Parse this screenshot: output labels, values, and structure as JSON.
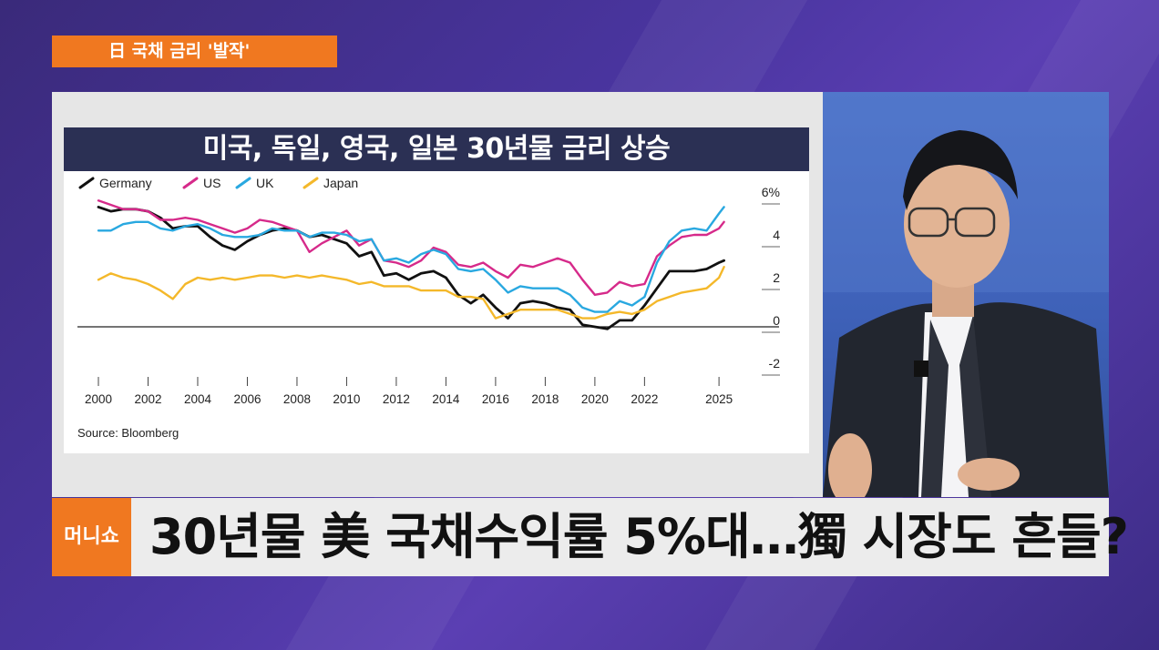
{
  "topic_tag": "日 국채 금리 '발작'",
  "chart_title": "미국, 독일, 영국, 일본 30년물 금리 상승",
  "logo_text": "머니쇼",
  "headline": "30년물 美 국채수익률 5%대…獨 시장도 흔들?",
  "chart_data": {
    "type": "line",
    "title": "미국, 독일, 영국, 일본 30년물 금리 상승",
    "source": "Source: Bloomberg",
    "x_ticks": [
      "2000",
      "2002",
      "2004",
      "2006",
      "2008",
      "2010",
      "2012",
      "2014",
      "2016",
      "2018",
      "2020",
      "2022",
      "2025"
    ],
    "y_ticks": [
      "6%",
      "4",
      "2",
      "0",
      "-2"
    ],
    "ylim": [
      -2,
      6
    ],
    "xlim": [
      2000,
      2025.4
    ],
    "legend_position": "top-left",
    "series": [
      {
        "name": "Germany",
        "color": "#111111",
        "x": [
          2000,
          2000.5,
          2001,
          2001.5,
          2002,
          2002.5,
          2003,
          2003.5,
          2004,
          2004.5,
          2005,
          2005.5,
          2006,
          2006.5,
          2007,
          2007.5,
          2008,
          2008.5,
          2009,
          2009.5,
          2010,
          2010.5,
          2011,
          2011.5,
          2012,
          2012.5,
          2013,
          2013.5,
          2014,
          2014.5,
          2015,
          2015.5,
          2016,
          2016.5,
          2017,
          2017.5,
          2018,
          2018.5,
          2019,
          2019.5,
          2020,
          2020.5,
          2021,
          2021.5,
          2022,
          2022.5,
          2023,
          2023.5,
          2024,
          2024.5,
          2025,
          2025.2
        ],
        "values": [
          5.6,
          5.4,
          5.5,
          5.5,
          5.4,
          5.1,
          4.6,
          4.7,
          4.7,
          4.2,
          3.8,
          3.6,
          4.0,
          4.3,
          4.5,
          4.6,
          4.5,
          4.2,
          4.3,
          4.1,
          3.9,
          3.3,
          3.5,
          2.4,
          2.5,
          2.2,
          2.5,
          2.6,
          2.3,
          1.5,
          1.1,
          1.5,
          0.9,
          0.4,
          1.1,
          1.2,
          1.1,
          0.9,
          0.8,
          0.1,
          0.0,
          -0.1,
          0.3,
          0.3,
          1.0,
          1.8,
          2.6,
          2.6,
          2.6,
          2.7,
          3.0,
          3.1
        ]
      },
      {
        "name": "US",
        "color": "#d62a8a",
        "x": [
          2000,
          2000.5,
          2001,
          2001.5,
          2002,
          2002.5,
          2003,
          2003.5,
          2004,
          2004.5,
          2005,
          2005.5,
          2006,
          2006.5,
          2007,
          2007.5,
          2008,
          2008.5,
          2009,
          2009.5,
          2010,
          2010.5,
          2011,
          2011.5,
          2012,
          2012.5,
          2013,
          2013.5,
          2014,
          2014.5,
          2015,
          2015.5,
          2016,
          2016.5,
          2017,
          2017.5,
          2018,
          2018.5,
          2019,
          2019.5,
          2020,
          2020.5,
          2021,
          2021.5,
          2022,
          2022.5,
          2023,
          2023.5,
          2024,
          2024.5,
          2025,
          2025.2
        ],
        "values": [
          5.9,
          5.7,
          5.5,
          5.5,
          5.4,
          5.0,
          5.0,
          5.1,
          5.0,
          4.8,
          4.6,
          4.4,
          4.6,
          5.0,
          4.9,
          4.7,
          4.5,
          3.5,
          3.9,
          4.2,
          4.5,
          3.8,
          4.1,
          3.1,
          3.0,
          2.8,
          3.1,
          3.7,
          3.5,
          2.9,
          2.8,
          3.0,
          2.6,
          2.3,
          2.9,
          2.8,
          3.0,
          3.2,
          3.0,
          2.2,
          1.5,
          1.6,
          2.1,
          1.9,
          2.0,
          3.3,
          3.8,
          4.2,
          4.3,
          4.3,
          4.6,
          4.9
        ]
      },
      {
        "name": "UK",
        "color": "#29a8e0",
        "x": [
          2000,
          2000.5,
          2001,
          2001.5,
          2002,
          2002.5,
          2003,
          2003.5,
          2004,
          2004.5,
          2005,
          2005.5,
          2006,
          2006.5,
          2007,
          2007.5,
          2008,
          2008.5,
          2009,
          2009.5,
          2010,
          2010.5,
          2011,
          2011.5,
          2012,
          2012.5,
          2013,
          2013.5,
          2014,
          2014.5,
          2015,
          2015.5,
          2016,
          2016.5,
          2017,
          2017.5,
          2018,
          2018.5,
          2019,
          2019.5,
          2020,
          2020.5,
          2021,
          2021.5,
          2022,
          2022.5,
          2023,
          2023.5,
          2024,
          2024.5,
          2025,
          2025.2
        ],
        "values": [
          4.5,
          4.5,
          4.8,
          4.9,
          4.9,
          4.6,
          4.5,
          4.7,
          4.8,
          4.6,
          4.3,
          4.2,
          4.2,
          4.3,
          4.6,
          4.5,
          4.5,
          4.2,
          4.4,
          4.4,
          4.3,
          4.0,
          4.1,
          3.1,
          3.2,
          3.0,
          3.4,
          3.6,
          3.4,
          2.7,
          2.6,
          2.7,
          2.2,
          1.6,
          1.9,
          1.8,
          1.8,
          1.8,
          1.5,
          0.9,
          0.7,
          0.7,
          1.2,
          1.0,
          1.4,
          3.0,
          4.0,
          4.5,
          4.6,
          4.5,
          5.3,
          5.6
        ]
      },
      {
        "name": "Japan",
        "color": "#f4b82a",
        "x": [
          2000,
          2000.5,
          2001,
          2001.5,
          2002,
          2002.5,
          2003,
          2003.5,
          2004,
          2004.5,
          2005,
          2005.5,
          2006,
          2006.5,
          2007,
          2007.5,
          2008,
          2008.5,
          2009,
          2009.5,
          2010,
          2010.5,
          2011,
          2011.5,
          2012,
          2012.5,
          2013,
          2013.5,
          2014,
          2014.5,
          2015,
          2015.5,
          2016,
          2016.5,
          2017,
          2017.5,
          2018,
          2018.5,
          2019,
          2019.5,
          2020,
          2020.5,
          2021,
          2021.5,
          2022,
          2022.5,
          2023,
          2023.5,
          2024,
          2024.5,
          2025,
          2025.2
        ],
        "values": [
          2.2,
          2.5,
          2.3,
          2.2,
          2.0,
          1.7,
          1.3,
          2.0,
          2.3,
          2.2,
          2.3,
          2.2,
          2.3,
          2.4,
          2.4,
          2.3,
          2.4,
          2.3,
          2.4,
          2.3,
          2.2,
          2.0,
          2.1,
          1.9,
          1.9,
          1.9,
          1.7,
          1.7,
          1.7,
          1.4,
          1.4,
          1.3,
          0.4,
          0.6,
          0.8,
          0.8,
          0.8,
          0.8,
          0.6,
          0.4,
          0.4,
          0.6,
          0.7,
          0.6,
          0.8,
          1.2,
          1.4,
          1.6,
          1.7,
          1.8,
          2.3,
          2.8
        ]
      }
    ]
  }
}
